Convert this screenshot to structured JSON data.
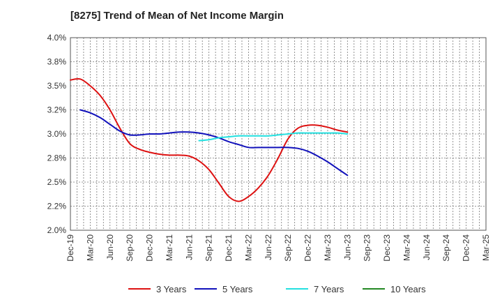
{
  "chart_data": {
    "type": "line",
    "title": "[8275]  Trend of Mean of Net Income Margin",
    "xlabel": "",
    "ylabel": "",
    "ylim": [
      2.0,
      4.0
    ],
    "y_ticks": [
      "2.0%",
      "2.2%",
      "2.5%",
      "2.8%",
      "3.0%",
      "3.2%",
      "3.5%",
      "3.8%",
      "4.0%"
    ],
    "x_tick_labels": [
      "Dec-19",
      "Mar-20",
      "Jun-20",
      "Sep-20",
      "Dec-20",
      "Mar-21",
      "Jun-21",
      "Sep-21",
      "Dec-21",
      "Mar-22",
      "Jun-22",
      "Sep-22",
      "Dec-22",
      "Mar-23",
      "Jun-23",
      "Sep-23",
      "Dec-23",
      "Mar-24",
      "Jun-24",
      "Sep-24",
      "Dec-24",
      "Mar-25"
    ],
    "grid": true,
    "legend_position": "bottom",
    "series": [
      {
        "name": "3 Years",
        "color": "#dd1111",
        "points": [
          [
            0,
            3.56
          ],
          [
            1,
            3.57
          ],
          [
            2,
            3.5
          ],
          [
            3,
            3.4
          ],
          [
            4,
            3.25
          ],
          [
            5,
            3.06
          ],
          [
            6,
            2.9
          ],
          [
            7,
            2.84
          ],
          [
            8,
            2.81
          ],
          [
            9,
            2.79
          ],
          [
            10,
            2.78
          ],
          [
            11,
            2.78
          ],
          [
            12,
            2.77
          ],
          [
            13,
            2.72
          ],
          [
            14,
            2.63
          ],
          [
            15,
            2.49
          ],
          [
            16,
            2.35
          ],
          [
            17,
            2.3
          ],
          [
            18,
            2.35
          ],
          [
            19,
            2.44
          ],
          [
            20,
            2.57
          ],
          [
            21,
            2.75
          ],
          [
            22,
            2.95
          ],
          [
            23,
            3.06
          ],
          [
            24,
            3.09
          ],
          [
            25,
            3.09
          ],
          [
            26,
            3.07
          ],
          [
            27,
            3.04
          ],
          [
            28,
            3.02
          ]
        ]
      },
      {
        "name": "5 Years",
        "color": "#1111bb",
        "points": [
          [
            1,
            3.25
          ],
          [
            2,
            3.22
          ],
          [
            3,
            3.17
          ],
          [
            4,
            3.1
          ],
          [
            5,
            3.03
          ],
          [
            6,
            2.99
          ],
          [
            7,
            2.99
          ],
          [
            8,
            3.0
          ],
          [
            9,
            3.0
          ],
          [
            10,
            3.01
          ],
          [
            11,
            3.02
          ],
          [
            12,
            3.02
          ],
          [
            13,
            3.01
          ],
          [
            14,
            2.99
          ],
          [
            15,
            2.96
          ],
          [
            16,
            2.92
          ],
          [
            17,
            2.89
          ],
          [
            18,
            2.86
          ],
          [
            19,
            2.86
          ],
          [
            20,
            2.86
          ],
          [
            21,
            2.86
          ],
          [
            22,
            2.86
          ],
          [
            23,
            2.85
          ],
          [
            24,
            2.82
          ],
          [
            25,
            2.77
          ],
          [
            26,
            2.71
          ],
          [
            27,
            2.64
          ],
          [
            28,
            2.57
          ]
        ]
      },
      {
        "name": "7 Years",
        "color": "#22e0e0",
        "points": [
          [
            13,
            2.93
          ],
          [
            14,
            2.94
          ],
          [
            15,
            2.96
          ],
          [
            16,
            2.97
          ],
          [
            17,
            2.98
          ],
          [
            18,
            2.98
          ],
          [
            19,
            2.98
          ],
          [
            20,
            2.98
          ],
          [
            21,
            2.99
          ],
          [
            22,
            3.0
          ],
          [
            23,
            3.01
          ],
          [
            24,
            3.01
          ],
          [
            25,
            3.01
          ],
          [
            26,
            3.01
          ],
          [
            27,
            3.01
          ],
          [
            28,
            3.0
          ]
        ]
      },
      {
        "name": "10 Years",
        "color": "#228822",
        "points": []
      }
    ]
  }
}
